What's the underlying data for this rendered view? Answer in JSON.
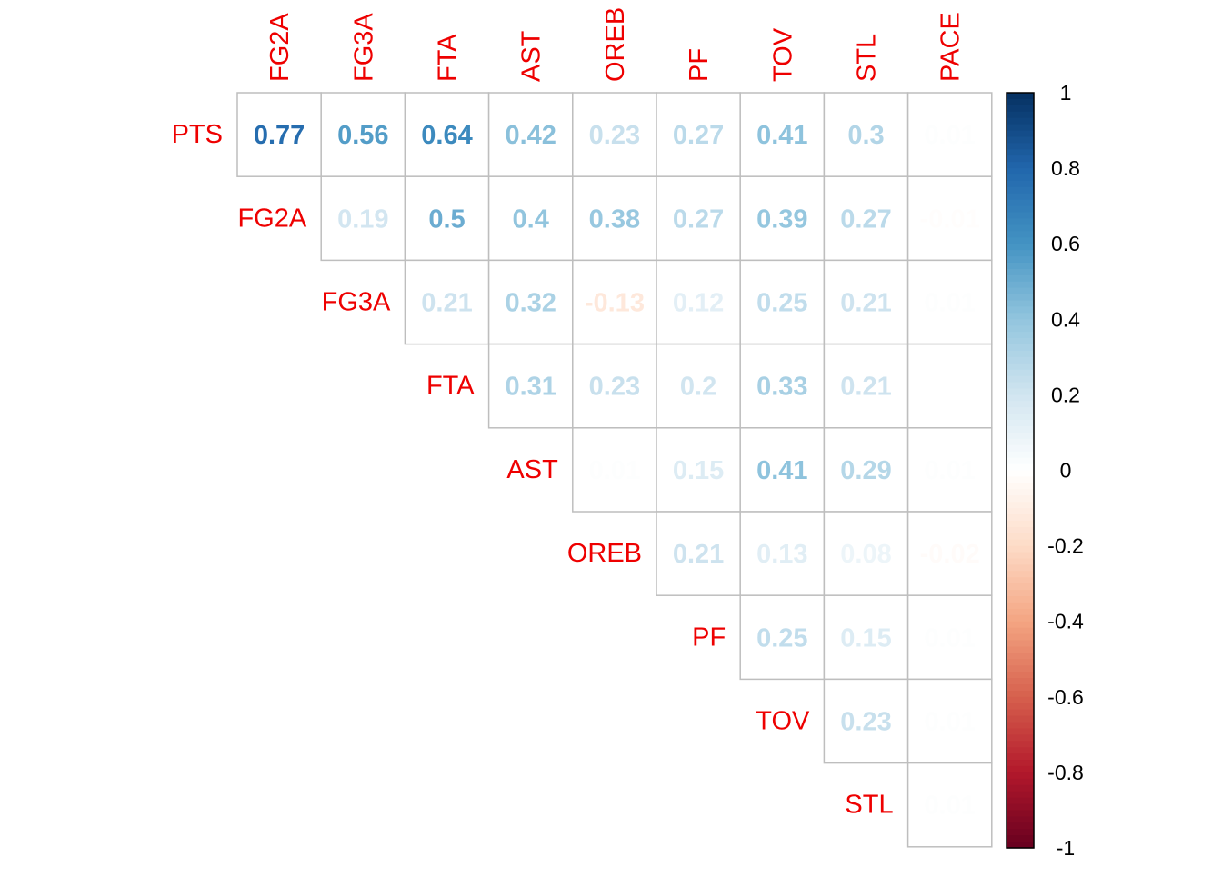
{
  "chart_data": {
    "type": "heatmap",
    "title": "",
    "layout": "upper-triangular",
    "row_labels": [
      "PTS",
      "FG2A",
      "FG3A",
      "FTA",
      "AST",
      "OREB",
      "PF",
      "TOV",
      "STL"
    ],
    "col_labels": [
      "FG2A",
      "FG3A",
      "FTA",
      "AST",
      "OREB",
      "PF",
      "TOV",
      "STL",
      "PACE"
    ],
    "values": [
      [
        0.77,
        0.56,
        0.64,
        0.42,
        0.23,
        0.27,
        0.41,
        0.3,
        0.01
      ],
      [
        null,
        0.19,
        0.5,
        0.4,
        0.38,
        0.27,
        0.39,
        0.27,
        -0.01
      ],
      [
        null,
        null,
        0.21,
        0.32,
        -0.13,
        0.12,
        0.25,
        0.21,
        0.01
      ],
      [
        null,
        null,
        null,
        0.31,
        0.23,
        0.2,
        0.33,
        0.21,
        0
      ],
      [
        null,
        null,
        null,
        null,
        0.01,
        0.15,
        0.41,
        0.29,
        0.01
      ],
      [
        null,
        null,
        null,
        null,
        null,
        0.21,
        0.13,
        0.08,
        -0.02
      ],
      [
        null,
        null,
        null,
        null,
        null,
        null,
        0.25,
        0.15,
        0.01
      ],
      [
        null,
        null,
        null,
        null,
        null,
        null,
        null,
        0.23,
        0.01
      ],
      [
        null,
        null,
        null,
        null,
        null,
        null,
        null,
        null,
        0.01
      ]
    ],
    "value_range": [
      -1,
      1
    ],
    "colorbar": {
      "ticks": [
        1,
        0.8,
        0.6,
        0.4,
        0.2,
        0,
        -0.2,
        -0.4,
        -0.6,
        -0.8,
        -1
      ],
      "tick_labels": [
        "1",
        "0.8",
        "0.6",
        "0.4",
        "0.2",
        "0",
        "-0.2",
        "-0.4",
        "-0.6",
        "-0.8",
        "-1"
      ],
      "placement": "right"
    },
    "colors": {
      "label_color": "#ee0000",
      "negative": "#67001f",
      "neutral": "#ffffff",
      "positive": "#053061",
      "grid": "#bebebe"
    }
  }
}
